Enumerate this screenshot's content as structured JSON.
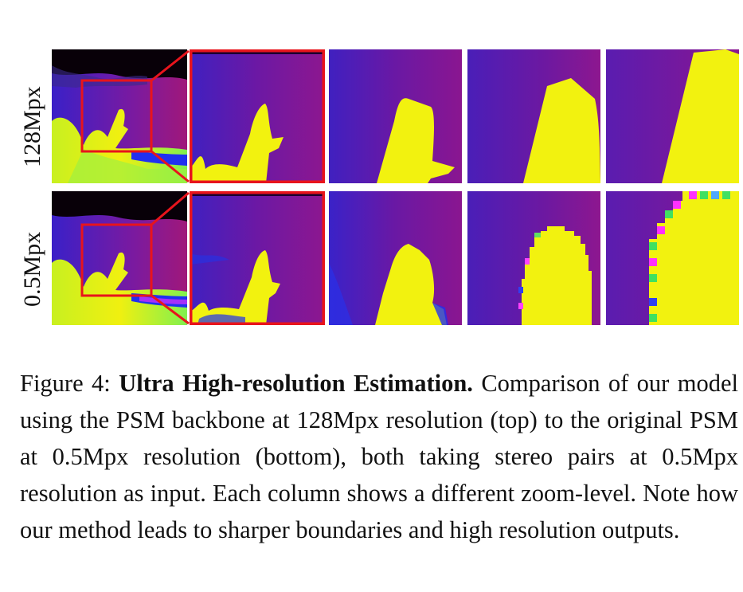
{
  "figure": {
    "rows": [
      {
        "label": "128Mpx"
      },
      {
        "label": "0.5Mpx"
      }
    ],
    "columns_described": "zoom-levels",
    "colors": {
      "purple": "#6a16a6",
      "magenta": "#8d178f",
      "yellow": "#f2f20f",
      "green": "#a8f23c",
      "blue": "#2038f0",
      "black": "#080008",
      "highlight_box": "#e8141c"
    }
  },
  "caption": {
    "prefix": "Figure 4: ",
    "title": "Ultra High-resolution Estimation.",
    "body": " Comparison of our model using the PSM backbone at 128Mpx resolution (top) to the original PSM at 0.5Mpx resolution (bottom), both taking stereo pairs at 0.5Mpx resolution as input. Each column shows a different zoom-level. Note how our method leads to sharper boundaries and high resolution outputs."
  }
}
